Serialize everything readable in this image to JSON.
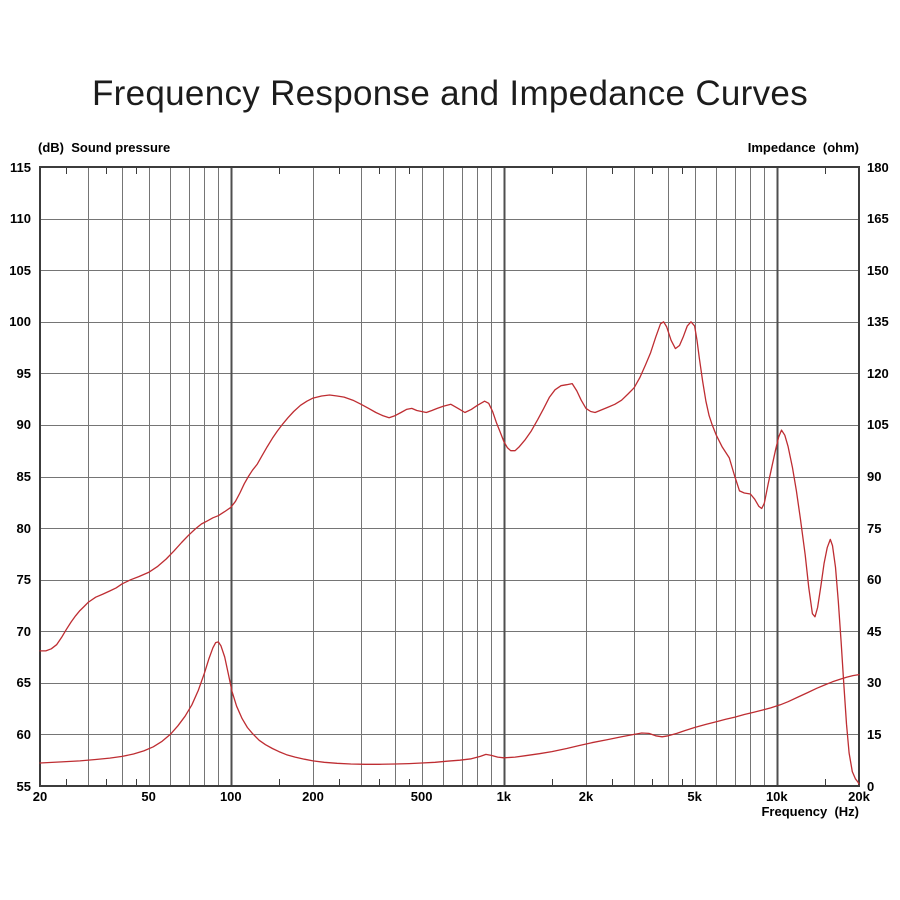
{
  "page": {
    "background": "#ffffff"
  },
  "chart_data": {
    "type": "line",
    "title": "Frequency Response and Impedance Curves",
    "grid": true,
    "legend": "none",
    "x_axis": {
      "label": "Frequency  (Hz)",
      "scale": "log",
      "min": 20,
      "max": 20000,
      "gridlines": [
        30,
        40,
        50,
        60,
        70,
        80,
        90,
        100,
        200,
        300,
        400,
        500,
        600,
        700,
        800,
        900,
        1000,
        2000,
        3000,
        4000,
        5000,
        6000,
        7000,
        8000,
        9000,
        10000
      ],
      "decade_lines": [
        100,
        1000,
        10000
      ],
      "minor_ticks": [
        25,
        35,
        45,
        150,
        250,
        350,
        450,
        1500,
        2500,
        3500,
        4500,
        15000
      ],
      "ticks": [
        {
          "f": 20,
          "t": "20"
        },
        {
          "f": 50,
          "t": "50"
        },
        {
          "f": 100,
          "t": "100"
        },
        {
          "f": 200,
          "t": "200"
        },
        {
          "f": 500,
          "t": "500"
        },
        {
          "f": 1000,
          "t": "1k"
        },
        {
          "f": 2000,
          "t": "2k"
        },
        {
          "f": 5000,
          "t": "5k"
        },
        {
          "f": 10000,
          "t": "10k"
        },
        {
          "f": 20000,
          "t": "20k"
        }
      ]
    },
    "y_left": {
      "label": "(dB)  Sound pressure",
      "min": 55,
      "max": 115,
      "step": 5,
      "labels": [
        "115",
        "110",
        "105",
        "100",
        "95",
        "90",
        "85",
        "80",
        "75",
        "70",
        "65",
        "60",
        "55"
      ]
    },
    "y_right": {
      "label": "Impedance  (ohm)",
      "min": 0,
      "max": 180,
      "step": 15,
      "labels": [
        "180",
        "165",
        "150",
        "135",
        "120",
        "105",
        "90",
        "75",
        "60",
        "45",
        "30",
        "15",
        "0"
      ]
    },
    "colors": {
      "curve": "#be2d32",
      "grid": "#757575",
      "grid_decade": "#4f4f4f",
      "border": "#3c3c3c",
      "text": "#000000",
      "title_text": "#1c1c1c"
    },
    "series": [
      {
        "id": "spl",
        "name": "Sound pressure",
        "axis": "left",
        "unit": "dB",
        "color": "#be2d32",
        "points": [
          [
            20,
            68.1
          ],
          [
            21,
            68.1
          ],
          [
            22,
            68.3
          ],
          [
            23,
            68.7
          ],
          [
            24,
            69.4
          ],
          [
            25,
            70.2
          ],
          [
            26,
            70.9
          ],
          [
            27,
            71.5
          ],
          [
            28,
            72.0
          ],
          [
            29,
            72.4
          ],
          [
            30,
            72.8
          ],
          [
            32,
            73.3
          ],
          [
            34,
            73.6
          ],
          [
            36,
            73.9
          ],
          [
            38,
            74.2
          ],
          [
            40,
            74.6
          ],
          [
            43,
            75.0
          ],
          [
            46,
            75.3
          ],
          [
            50,
            75.7
          ],
          [
            54,
            76.3
          ],
          [
            58,
            77.0
          ],
          [
            62,
            77.8
          ],
          [
            66,
            78.6
          ],
          [
            70,
            79.3
          ],
          [
            74,
            79.9
          ],
          [
            78,
            80.4
          ],
          [
            82,
            80.7
          ],
          [
            86,
            81.0
          ],
          [
            90,
            81.2
          ],
          [
            95,
            81.6
          ],
          [
            100,
            82.0
          ],
          [
            104,
            82.6
          ],
          [
            108,
            83.4
          ],
          [
            112,
            84.3
          ],
          [
            116,
            85.0
          ],
          [
            120,
            85.6
          ],
          [
            125,
            86.2
          ],
          [
            130,
            87.0
          ],
          [
            136,
            87.9
          ],
          [
            142,
            88.7
          ],
          [
            148,
            89.4
          ],
          [
            155,
            90.1
          ],
          [
            162,
            90.7
          ],
          [
            170,
            91.3
          ],
          [
            180,
            91.9
          ],
          [
            190,
            92.3
          ],
          [
            200,
            92.6
          ],
          [
            215,
            92.8
          ],
          [
            230,
            92.9
          ],
          [
            245,
            92.8
          ],
          [
            260,
            92.7
          ],
          [
            280,
            92.4
          ],
          [
            300,
            92.0
          ],
          [
            320,
            91.6
          ],
          [
            340,
            91.2
          ],
          [
            360,
            90.9
          ],
          [
            380,
            90.7
          ],
          [
            400,
            90.9
          ],
          [
            420,
            91.2
          ],
          [
            440,
            91.5
          ],
          [
            460,
            91.6
          ],
          [
            480,
            91.4
          ],
          [
            500,
            91.3
          ],
          [
            520,
            91.2
          ],
          [
            545,
            91.4
          ],
          [
            570,
            91.6
          ],
          [
            600,
            91.8
          ],
          [
            640,
            92.0
          ],
          [
            680,
            91.6
          ],
          [
            720,
            91.2
          ],
          [
            760,
            91.5
          ],
          [
            800,
            91.9
          ],
          [
            850,
            92.3
          ],
          [
            880,
            92.1
          ],
          [
            910,
            91.3
          ],
          [
            940,
            90.2
          ],
          [
            970,
            89.3
          ],
          [
            1000,
            88.4
          ],
          [
            1030,
            87.8
          ],
          [
            1060,
            87.5
          ],
          [
            1100,
            87.5
          ],
          [
            1140,
            87.9
          ],
          [
            1200,
            88.6
          ],
          [
            1260,
            89.4
          ],
          [
            1330,
            90.5
          ],
          [
            1400,
            91.6
          ],
          [
            1470,
            92.7
          ],
          [
            1540,
            93.4
          ],
          [
            1620,
            93.8
          ],
          [
            1700,
            93.9
          ],
          [
            1780,
            94.0
          ],
          [
            1850,
            93.3
          ],
          [
            1920,
            92.4
          ],
          [
            2000,
            91.6
          ],
          [
            2080,
            91.3
          ],
          [
            2160,
            91.2
          ],
          [
            2250,
            91.4
          ],
          [
            2400,
            91.7
          ],
          [
            2550,
            92.0
          ],
          [
            2700,
            92.4
          ],
          [
            2850,
            93.0
          ],
          [
            3000,
            93.6
          ],
          [
            3150,
            94.6
          ],
          [
            3300,
            95.8
          ],
          [
            3450,
            97.0
          ],
          [
            3600,
            98.5
          ],
          [
            3750,
            99.8
          ],
          [
            3850,
            100.0
          ],
          [
            3950,
            99.5
          ],
          [
            4100,
            98.2
          ],
          [
            4250,
            97.4
          ],
          [
            4400,
            97.7
          ],
          [
            4550,
            98.6
          ],
          [
            4700,
            99.6
          ],
          [
            4850,
            100.0
          ],
          [
            5000,
            99.6
          ],
          [
            5100,
            98.2
          ],
          [
            5200,
            96.5
          ],
          [
            5350,
            94.2
          ],
          [
            5500,
            92.3
          ],
          [
            5650,
            90.9
          ],
          [
            5800,
            90.0
          ],
          [
            6000,
            89.0
          ],
          [
            6300,
            87.9
          ],
          [
            6700,
            86.8
          ],
          [
            7000,
            85.1
          ],
          [
            7300,
            83.6
          ],
          [
            7600,
            83.4
          ],
          [
            8000,
            83.3
          ],
          [
            8300,
            82.8
          ],
          [
            8600,
            82.1
          ],
          [
            8800,
            81.9
          ],
          [
            9000,
            82.4
          ],
          [
            9300,
            84.3
          ],
          [
            9600,
            86.0
          ],
          [
            9900,
            87.6
          ],
          [
            10150,
            88.8
          ],
          [
            10400,
            89.5
          ],
          [
            10700,
            89.0
          ],
          [
            11000,
            87.9
          ],
          [
            11400,
            85.9
          ],
          [
            11800,
            83.6
          ],
          [
            12200,
            80.9
          ],
          [
            12700,
            77.4
          ],
          [
            13100,
            74.2
          ],
          [
            13500,
            71.7
          ],
          [
            13800,
            71.4
          ],
          [
            14100,
            72.3
          ],
          [
            14500,
            74.4
          ],
          [
            14900,
            76.6
          ],
          [
            15300,
            78.1
          ],
          [
            15700,
            78.9
          ],
          [
            16000,
            78.3
          ],
          [
            16400,
            76.2
          ],
          [
            16800,
            72.9
          ],
          [
            17200,
            69.0
          ],
          [
            17600,
            64.9
          ],
          [
            18000,
            61.0
          ],
          [
            18400,
            58.2
          ],
          [
            18900,
            56.4
          ],
          [
            19400,
            55.7
          ],
          [
            19800,
            55.4
          ],
          [
            20000,
            55.2
          ]
        ]
      },
      {
        "id": "impedance",
        "name": "Impedance",
        "axis": "right",
        "unit": "ohm",
        "color": "#be2d32",
        "points": [
          [
            20,
            6.7
          ],
          [
            24,
            7.0
          ],
          [
            28,
            7.3
          ],
          [
            32,
            7.7
          ],
          [
            36,
            8.1
          ],
          [
            40,
            8.6
          ],
          [
            44,
            9.3
          ],
          [
            48,
            10.2
          ],
          [
            52,
            11.4
          ],
          [
            56,
            13.0
          ],
          [
            60,
            15.0
          ],
          [
            64,
            17.5
          ],
          [
            68,
            20.3
          ],
          [
            72,
            23.6
          ],
          [
            76,
            27.8
          ],
          [
            80,
            32.8
          ],
          [
            83,
            36.8
          ],
          [
            86,
            40.2
          ],
          [
            88,
            41.7
          ],
          [
            90,
            41.9
          ],
          [
            92,
            40.8
          ],
          [
            95,
            37.5
          ],
          [
            98,
            32.5
          ],
          [
            101,
            27.5
          ],
          [
            105,
            23.2
          ],
          [
            110,
            19.6
          ],
          [
            115,
            17.0
          ],
          [
            120,
            15.3
          ],
          [
            127,
            13.3
          ],
          [
            134,
            12.0
          ],
          [
            142,
            10.9
          ],
          [
            150,
            10.0
          ],
          [
            160,
            9.1
          ],
          [
            172,
            8.4
          ],
          [
            186,
            7.8
          ],
          [
            200,
            7.3
          ],
          [
            220,
            6.9
          ],
          [
            245,
            6.6
          ],
          [
            275,
            6.4
          ],
          [
            310,
            6.3
          ],
          [
            350,
            6.3
          ],
          [
            400,
            6.4
          ],
          [
            450,
            6.5
          ],
          [
            500,
            6.7
          ],
          [
            560,
            6.9
          ],
          [
            620,
            7.2
          ],
          [
            690,
            7.5
          ],
          [
            760,
            7.9
          ],
          [
            820,
            8.6
          ],
          [
            860,
            9.2
          ],
          [
            900,
            8.9
          ],
          [
            950,
            8.4
          ],
          [
            1000,
            8.2
          ],
          [
            1100,
            8.4
          ],
          [
            1200,
            8.8
          ],
          [
            1350,
            9.4
          ],
          [
            1500,
            10.0
          ],
          [
            1700,
            10.9
          ],
          [
            1900,
            11.8
          ],
          [
            2100,
            12.6
          ],
          [
            2400,
            13.5
          ],
          [
            2700,
            14.3
          ],
          [
            3000,
            15.0
          ],
          [
            3200,
            15.4
          ],
          [
            3400,
            15.3
          ],
          [
            3600,
            14.6
          ],
          [
            3800,
            14.3
          ],
          [
            4000,
            14.6
          ],
          [
            4300,
            15.3
          ],
          [
            4600,
            16.1
          ],
          [
            5000,
            17.0
          ],
          [
            5500,
            17.9
          ],
          [
            6000,
            18.7
          ],
          [
            6500,
            19.4
          ],
          [
            7000,
            20.0
          ],
          [
            7600,
            20.8
          ],
          [
            8200,
            21.4
          ],
          [
            8800,
            22.0
          ],
          [
            9500,
            22.7
          ],
          [
            10300,
            23.6
          ],
          [
            11000,
            24.5
          ],
          [
            12000,
            25.9
          ],
          [
            13000,
            27.2
          ],
          [
            14000,
            28.4
          ],
          [
            15000,
            29.4
          ],
          [
            16000,
            30.3
          ],
          [
            17000,
            31.0
          ],
          [
            18000,
            31.6
          ],
          [
            19000,
            32.1
          ],
          [
            20000,
            32.4
          ]
        ]
      }
    ]
  }
}
